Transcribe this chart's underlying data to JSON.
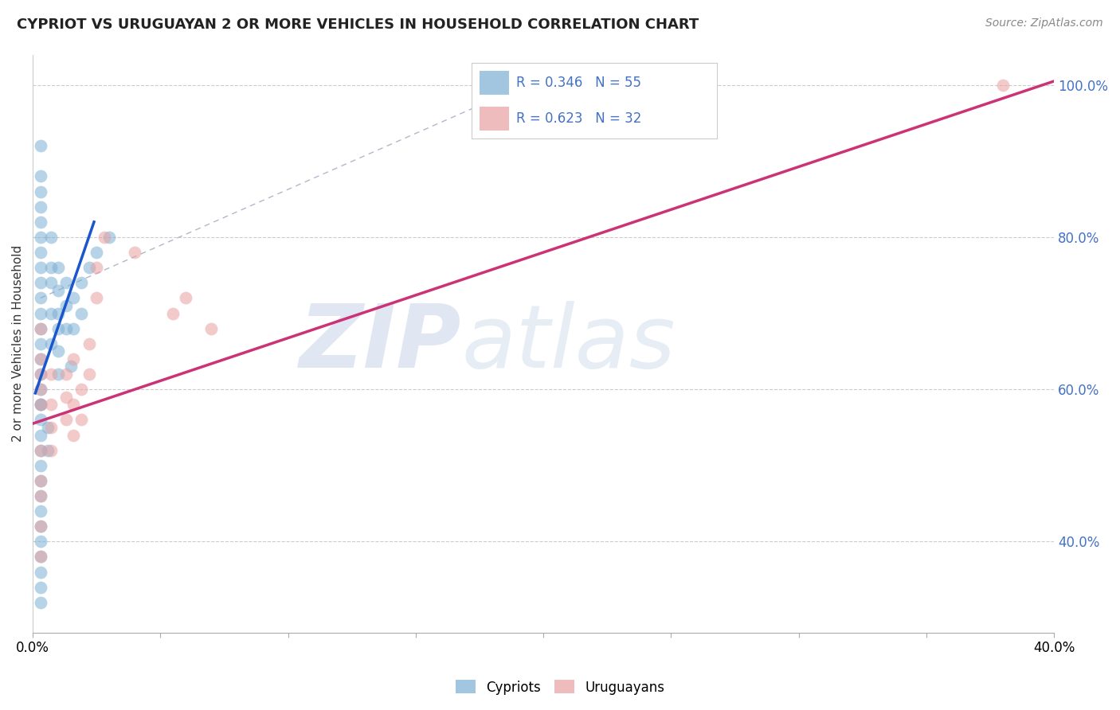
{
  "title": "CYPRIOT VS URUGUAYAN 2 OR MORE VEHICLES IN HOUSEHOLD CORRELATION CHART",
  "source": "Source: ZipAtlas.com",
  "ylabel": "2 or more Vehicles in Household",
  "xmin": 0.0,
  "xmax": 0.4,
  "ymin": 0.28,
  "ymax": 1.04,
  "xtick_vals": [
    0.0,
    0.05,
    0.1,
    0.15,
    0.2,
    0.25,
    0.3,
    0.35,
    0.4
  ],
  "xlabels": [
    "0.0%",
    "",
    "",
    "",
    "",
    "",
    "",
    "",
    "40.0%"
  ],
  "yticks": [
    0.4,
    0.6,
    0.8,
    1.0
  ],
  "ylabels": [
    "40.0%",
    "60.0%",
    "80.0%",
    "100.0%"
  ],
  "legend_blue_label": "Cypriots",
  "legend_pink_label": "Uruguayans",
  "R_blue": 0.346,
  "N_blue": 55,
  "R_pink": 0.623,
  "N_pink": 32,
  "blue_color": "#7bafd4",
  "pink_color": "#e8a0a0",
  "blue_line_color": "#1a56cc",
  "pink_line_color": "#cc3377",
  "dash_line_color": "#b0b8c8",
  "blue_points": [
    [
      0.003,
      0.92
    ],
    [
      0.003,
      0.84
    ],
    [
      0.003,
      0.82
    ],
    [
      0.003,
      0.8
    ],
    [
      0.003,
      0.78
    ],
    [
      0.003,
      0.76
    ],
    [
      0.003,
      0.74
    ],
    [
      0.003,
      0.72
    ],
    [
      0.003,
      0.7
    ],
    [
      0.003,
      0.68
    ],
    [
      0.003,
      0.66
    ],
    [
      0.003,
      0.64
    ],
    [
      0.003,
      0.62
    ],
    [
      0.003,
      0.6
    ],
    [
      0.003,
      0.58
    ],
    [
      0.003,
      0.56
    ],
    [
      0.003,
      0.54
    ],
    [
      0.003,
      0.52
    ],
    [
      0.003,
      0.5
    ],
    [
      0.003,
      0.48
    ],
    [
      0.003,
      0.46
    ],
    [
      0.003,
      0.44
    ],
    [
      0.003,
      0.42
    ],
    [
      0.003,
      0.38
    ],
    [
      0.003,
      0.34
    ],
    [
      0.007,
      0.8
    ],
    [
      0.007,
      0.76
    ],
    [
      0.007,
      0.74
    ],
    [
      0.007,
      0.7
    ],
    [
      0.007,
      0.66
    ],
    [
      0.01,
      0.76
    ],
    [
      0.01,
      0.73
    ],
    [
      0.01,
      0.7
    ],
    [
      0.01,
      0.68
    ],
    [
      0.01,
      0.65
    ],
    [
      0.013,
      0.74
    ],
    [
      0.013,
      0.71
    ],
    [
      0.013,
      0.68
    ],
    [
      0.016,
      0.72
    ],
    [
      0.016,
      0.68
    ],
    [
      0.019,
      0.74
    ],
    [
      0.019,
      0.7
    ],
    [
      0.022,
      0.76
    ],
    [
      0.006,
      0.55
    ],
    [
      0.006,
      0.52
    ],
    [
      0.003,
      0.36
    ],
    [
      0.003,
      0.32
    ],
    [
      0.01,
      0.62
    ],
    [
      0.015,
      0.63
    ],
    [
      0.003,
      0.86
    ],
    [
      0.003,
      0.88
    ],
    [
      0.025,
      0.78
    ],
    [
      0.03,
      0.8
    ],
    [
      0.003,
      0.4
    ],
    [
      0.003,
      0.58
    ]
  ],
  "pink_points": [
    [
      0.003,
      0.68
    ],
    [
      0.003,
      0.64
    ],
    [
      0.003,
      0.62
    ],
    [
      0.003,
      0.6
    ],
    [
      0.003,
      0.58
    ],
    [
      0.003,
      0.52
    ],
    [
      0.003,
      0.48
    ],
    [
      0.003,
      0.46
    ],
    [
      0.003,
      0.42
    ],
    [
      0.003,
      0.38
    ],
    [
      0.007,
      0.62
    ],
    [
      0.007,
      0.58
    ],
    [
      0.007,
      0.55
    ],
    [
      0.007,
      0.52
    ],
    [
      0.013,
      0.62
    ],
    [
      0.013,
      0.59
    ],
    [
      0.013,
      0.56
    ],
    [
      0.016,
      0.64
    ],
    [
      0.016,
      0.58
    ],
    [
      0.016,
      0.54
    ],
    [
      0.019,
      0.6
    ],
    [
      0.019,
      0.56
    ],
    [
      0.022,
      0.66
    ],
    [
      0.022,
      0.62
    ],
    [
      0.025,
      0.76
    ],
    [
      0.025,
      0.72
    ],
    [
      0.028,
      0.8
    ],
    [
      0.04,
      0.78
    ],
    [
      0.055,
      0.7
    ],
    [
      0.06,
      0.72
    ],
    [
      0.07,
      0.68
    ],
    [
      0.38,
      1.0
    ]
  ],
  "blue_line": {
    "x0": 0.001,
    "x1": 0.024,
    "y0": 0.595,
    "y1": 0.82
  },
  "pink_line": {
    "x0": 0.0,
    "x1": 0.4,
    "y0": 0.555,
    "y1": 1.005
  },
  "dash_line": {
    "x0": 0.003,
    "x1": 0.2,
    "y0": 0.72,
    "y1": 1.01
  }
}
